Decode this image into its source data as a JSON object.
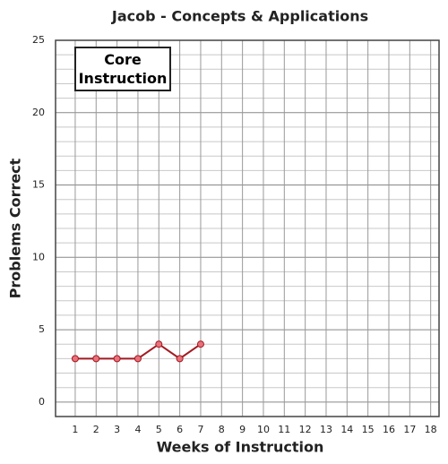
{
  "chart_data": {
    "type": "line",
    "title": "Jacob - Concepts & Applications",
    "x_label": "Weeks of Instruction",
    "y_label": "Problems Correct",
    "annotation": "Core Instruction",
    "x": [
      1,
      2,
      3,
      4,
      5,
      6,
      7
    ],
    "series": [
      {
        "name": "Jacob",
        "color": "#a31a22",
        "marker_color": "#e8717b",
        "values": [
          3,
          3,
          3,
          3,
          4,
          3,
          4
        ]
      }
    ],
    "xlim": [
      0.06,
      18.4
    ],
    "xticks": [
      1,
      2,
      3,
      4,
      5,
      6,
      7,
      8,
      9,
      10,
      11,
      12,
      13,
      14,
      15,
      16,
      17,
      18
    ],
    "ylim": [
      -1,
      25
    ],
    "yticks": [
      0,
      5,
      10,
      15,
      20,
      25
    ],
    "minor_yticks": [
      1,
      2,
      3,
      4,
      6,
      7,
      8,
      9,
      11,
      12,
      13,
      14,
      16,
      17,
      18,
      19,
      21,
      22,
      23,
      24
    ],
    "grid": true,
    "legend": false
  }
}
